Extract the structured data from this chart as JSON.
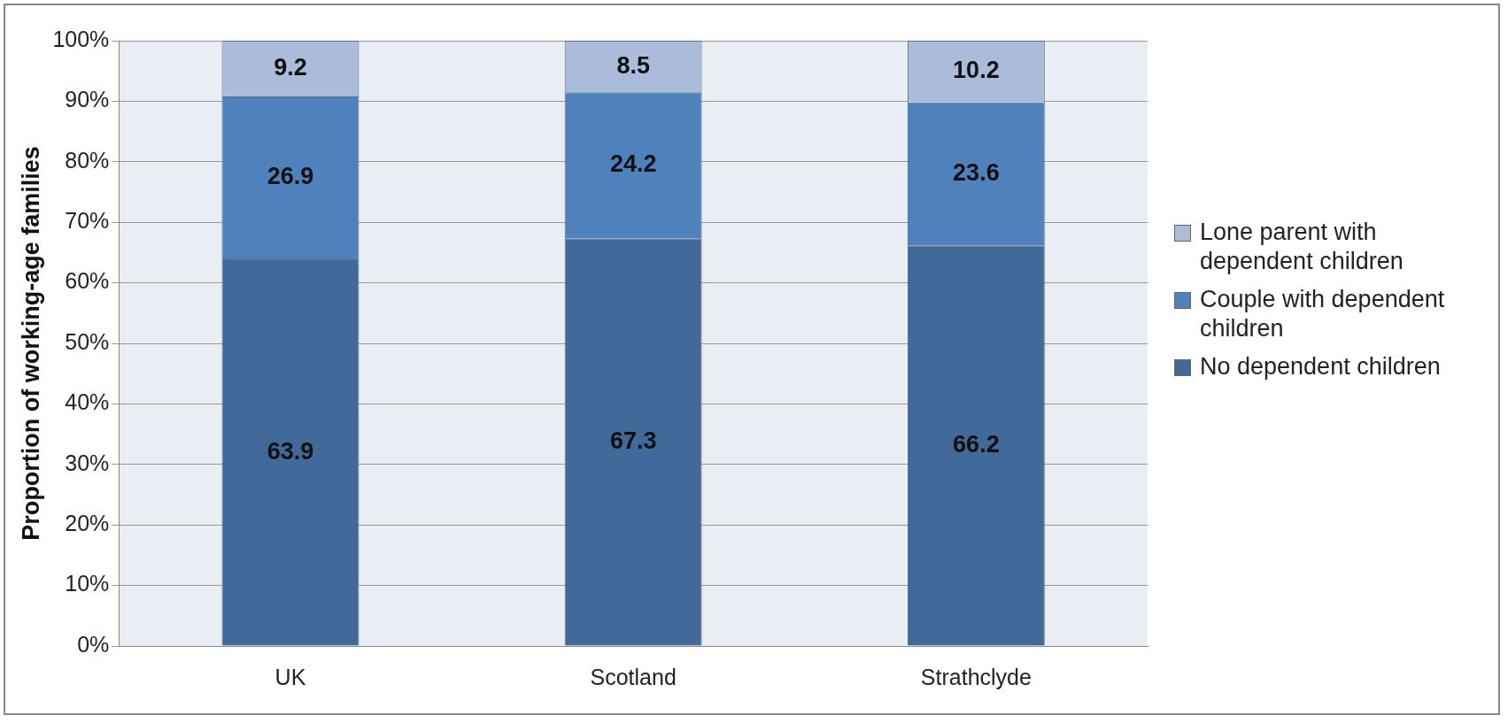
{
  "chart_data": {
    "type": "bar",
    "stacked": true,
    "ylabel": "Proportion of working-age families",
    "categories": [
      "UK",
      "Scotland",
      "Strathclyde"
    ],
    "series": [
      {
        "name": "No dependent children",
        "color": "#41699a",
        "values": [
          63.9,
          67.3,
          66.2
        ]
      },
      {
        "name": "Couple with dependent children",
        "color": "#4f81bd",
        "values": [
          26.9,
          24.2,
          23.6
        ]
      },
      {
        "name": "Lone parent with dependent children",
        "color": "#aabcd9",
        "values": [
          9.2,
          8.5,
          10.2
        ]
      }
    ],
    "ylim": [
      0,
      100
    ],
    "yticks": [
      {
        "value": 0,
        "label": "0%"
      },
      {
        "value": 10,
        "label": "10%"
      },
      {
        "value": 20,
        "label": "20%"
      },
      {
        "value": 30,
        "label": "30%"
      },
      {
        "value": 40,
        "label": "40%"
      },
      {
        "value": 50,
        "label": "50%"
      },
      {
        "value": 60,
        "label": "60%"
      },
      {
        "value": 70,
        "label": "70%"
      },
      {
        "value": 80,
        "label": "80%"
      },
      {
        "value": 90,
        "label": "90%"
      },
      {
        "value": 100,
        "label": "100%"
      }
    ],
    "grid": "y",
    "legend": "right",
    "data_labels": true
  }
}
